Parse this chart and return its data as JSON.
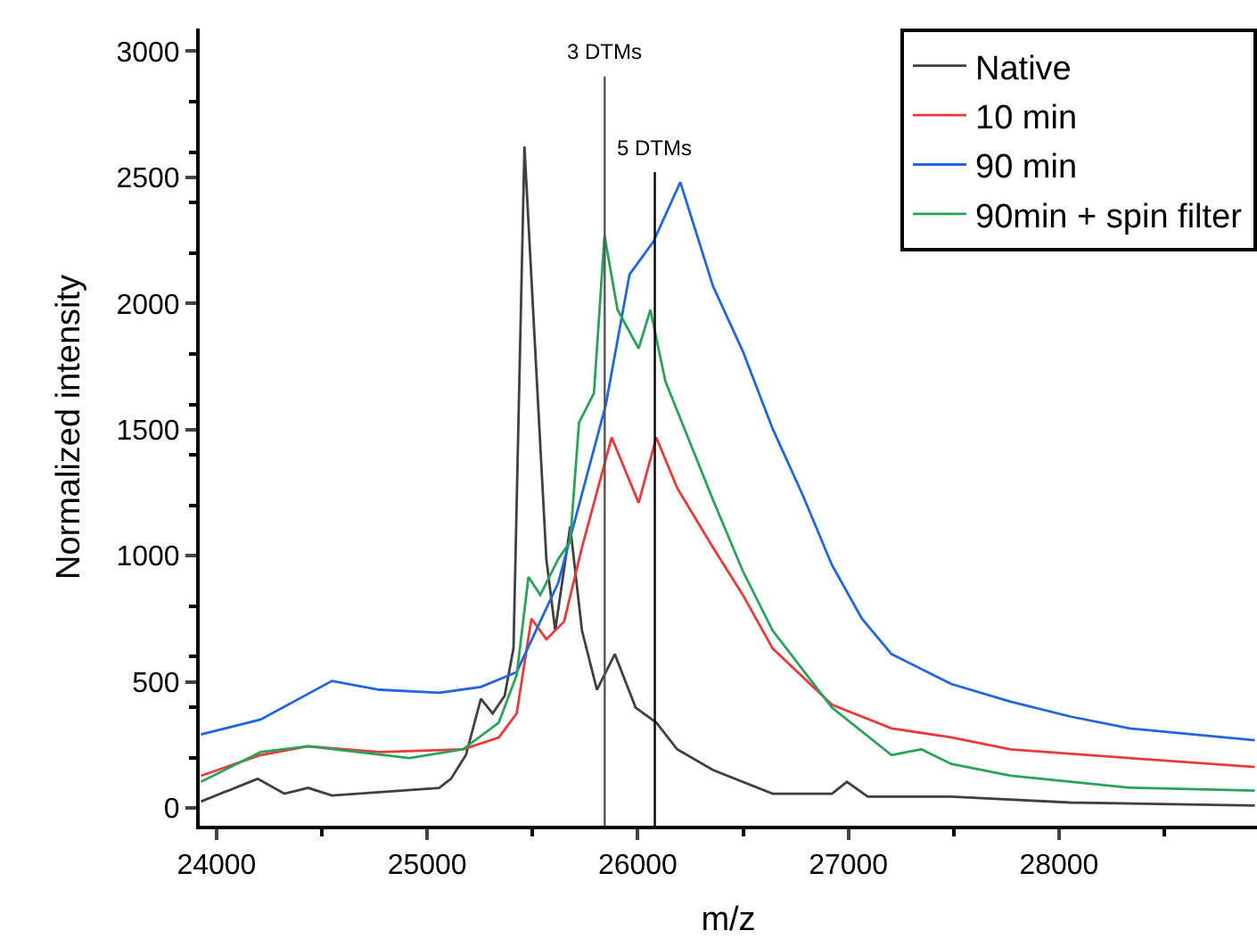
{
  "chart_data": {
    "type": "line",
    "xlabel": "m/z",
    "ylabel": "Normalized intensity",
    "xlim": [
      23920,
      28940
    ],
    "ylim": [
      -70,
      3090
    ],
    "xticks": [
      24000,
      25000,
      26000,
      27000,
      28000
    ],
    "yticks": [
      0,
      500,
      1000,
      1500,
      2000,
      2500,
      3000
    ],
    "legend": "top right",
    "marker": "none",
    "line_style": "solid",
    "ref_lines": [
      {
        "axis": "x",
        "value": 25843,
        "label": "3 DTMs",
        "color": "#555555"
      },
      {
        "axis": "x",
        "value": 26081,
        "label": "5 DTMs",
        "color": "#000000"
      }
    ],
    "series": [
      {
        "name": "Native",
        "color": "#404040",
        "x": [
          23926,
          24195,
          24322,
          24435,
          24548,
          25057,
          25113,
          25184,
          25255,
          25311,
          25368,
          25410,
          25462,
          25509,
          25566,
          25608,
          25679,
          25735,
          25806,
          25891,
          25990,
          26088,
          26187,
          26357,
          26640,
          26922,
          26993,
          27092,
          27488,
          28053,
          28930
        ],
        "values": [
          26,
          116,
          57,
          80,
          50,
          80,
          116,
          210,
          433,
          375,
          445,
          634,
          2622,
          1880,
          986,
          704,
          1116,
          704,
          469,
          610,
          398,
          339,
          233,
          151,
          57,
          57,
          104,
          45,
          45,
          22,
          10
        ]
      },
      {
        "name": "10 min",
        "color": "#e83a3a",
        "x": [
          23926,
          24209,
          24435,
          24774,
          25170,
          25340,
          25425,
          25495,
          25566,
          25650,
          25735,
          25876,
          26004,
          26088,
          26187,
          26357,
          26499,
          26640,
          26922,
          27205,
          27488,
          27770,
          28336,
          28930
        ],
        "values": [
          128,
          210,
          245,
          222,
          233,
          280,
          375,
          751,
          669,
          739,
          1033,
          1469,
          1210,
          1469,
          1269,
          1033,
          845,
          633,
          410,
          316,
          280,
          233,
          198,
          163
        ]
      },
      {
        "name": "90 min",
        "color": "#1f66e0",
        "x": [
          23926,
          24209,
          24548,
          24774,
          25057,
          25255,
          25425,
          25622,
          25848,
          25961,
          26074,
          26202,
          26357,
          26499,
          26640,
          26781,
          26922,
          27064,
          27205,
          27488,
          27770,
          28053,
          28336,
          28930
        ],
        "values": [
          292,
          351,
          504,
          469,
          457,
          480,
          539,
          892,
          1598,
          2116,
          2245,
          2481,
          2069,
          1810,
          1504,
          1245,
          963,
          751,
          610,
          492,
          422,
          363,
          316,
          269
        ]
      },
      {
        "name": "90min + spin filter",
        "color": "#2aa35a",
        "x": [
          23926,
          24209,
          24435,
          24916,
          25170,
          25340,
          25425,
          25481,
          25537,
          25622,
          25679,
          25721,
          25792,
          25842,
          25904,
          26004,
          26060,
          26131,
          26357,
          26499,
          26640,
          26922,
          27205,
          27346,
          27488,
          27770,
          28336,
          28930
        ],
        "values": [
          104,
          222,
          245,
          198,
          233,
          339,
          527,
          916,
          845,
          986,
          1057,
          1528,
          1645,
          2269,
          1975,
          1822,
          1975,
          1692,
          1222,
          939,
          704,
          398,
          210,
          233,
          175,
          128,
          81,
          69
        ]
      }
    ]
  }
}
